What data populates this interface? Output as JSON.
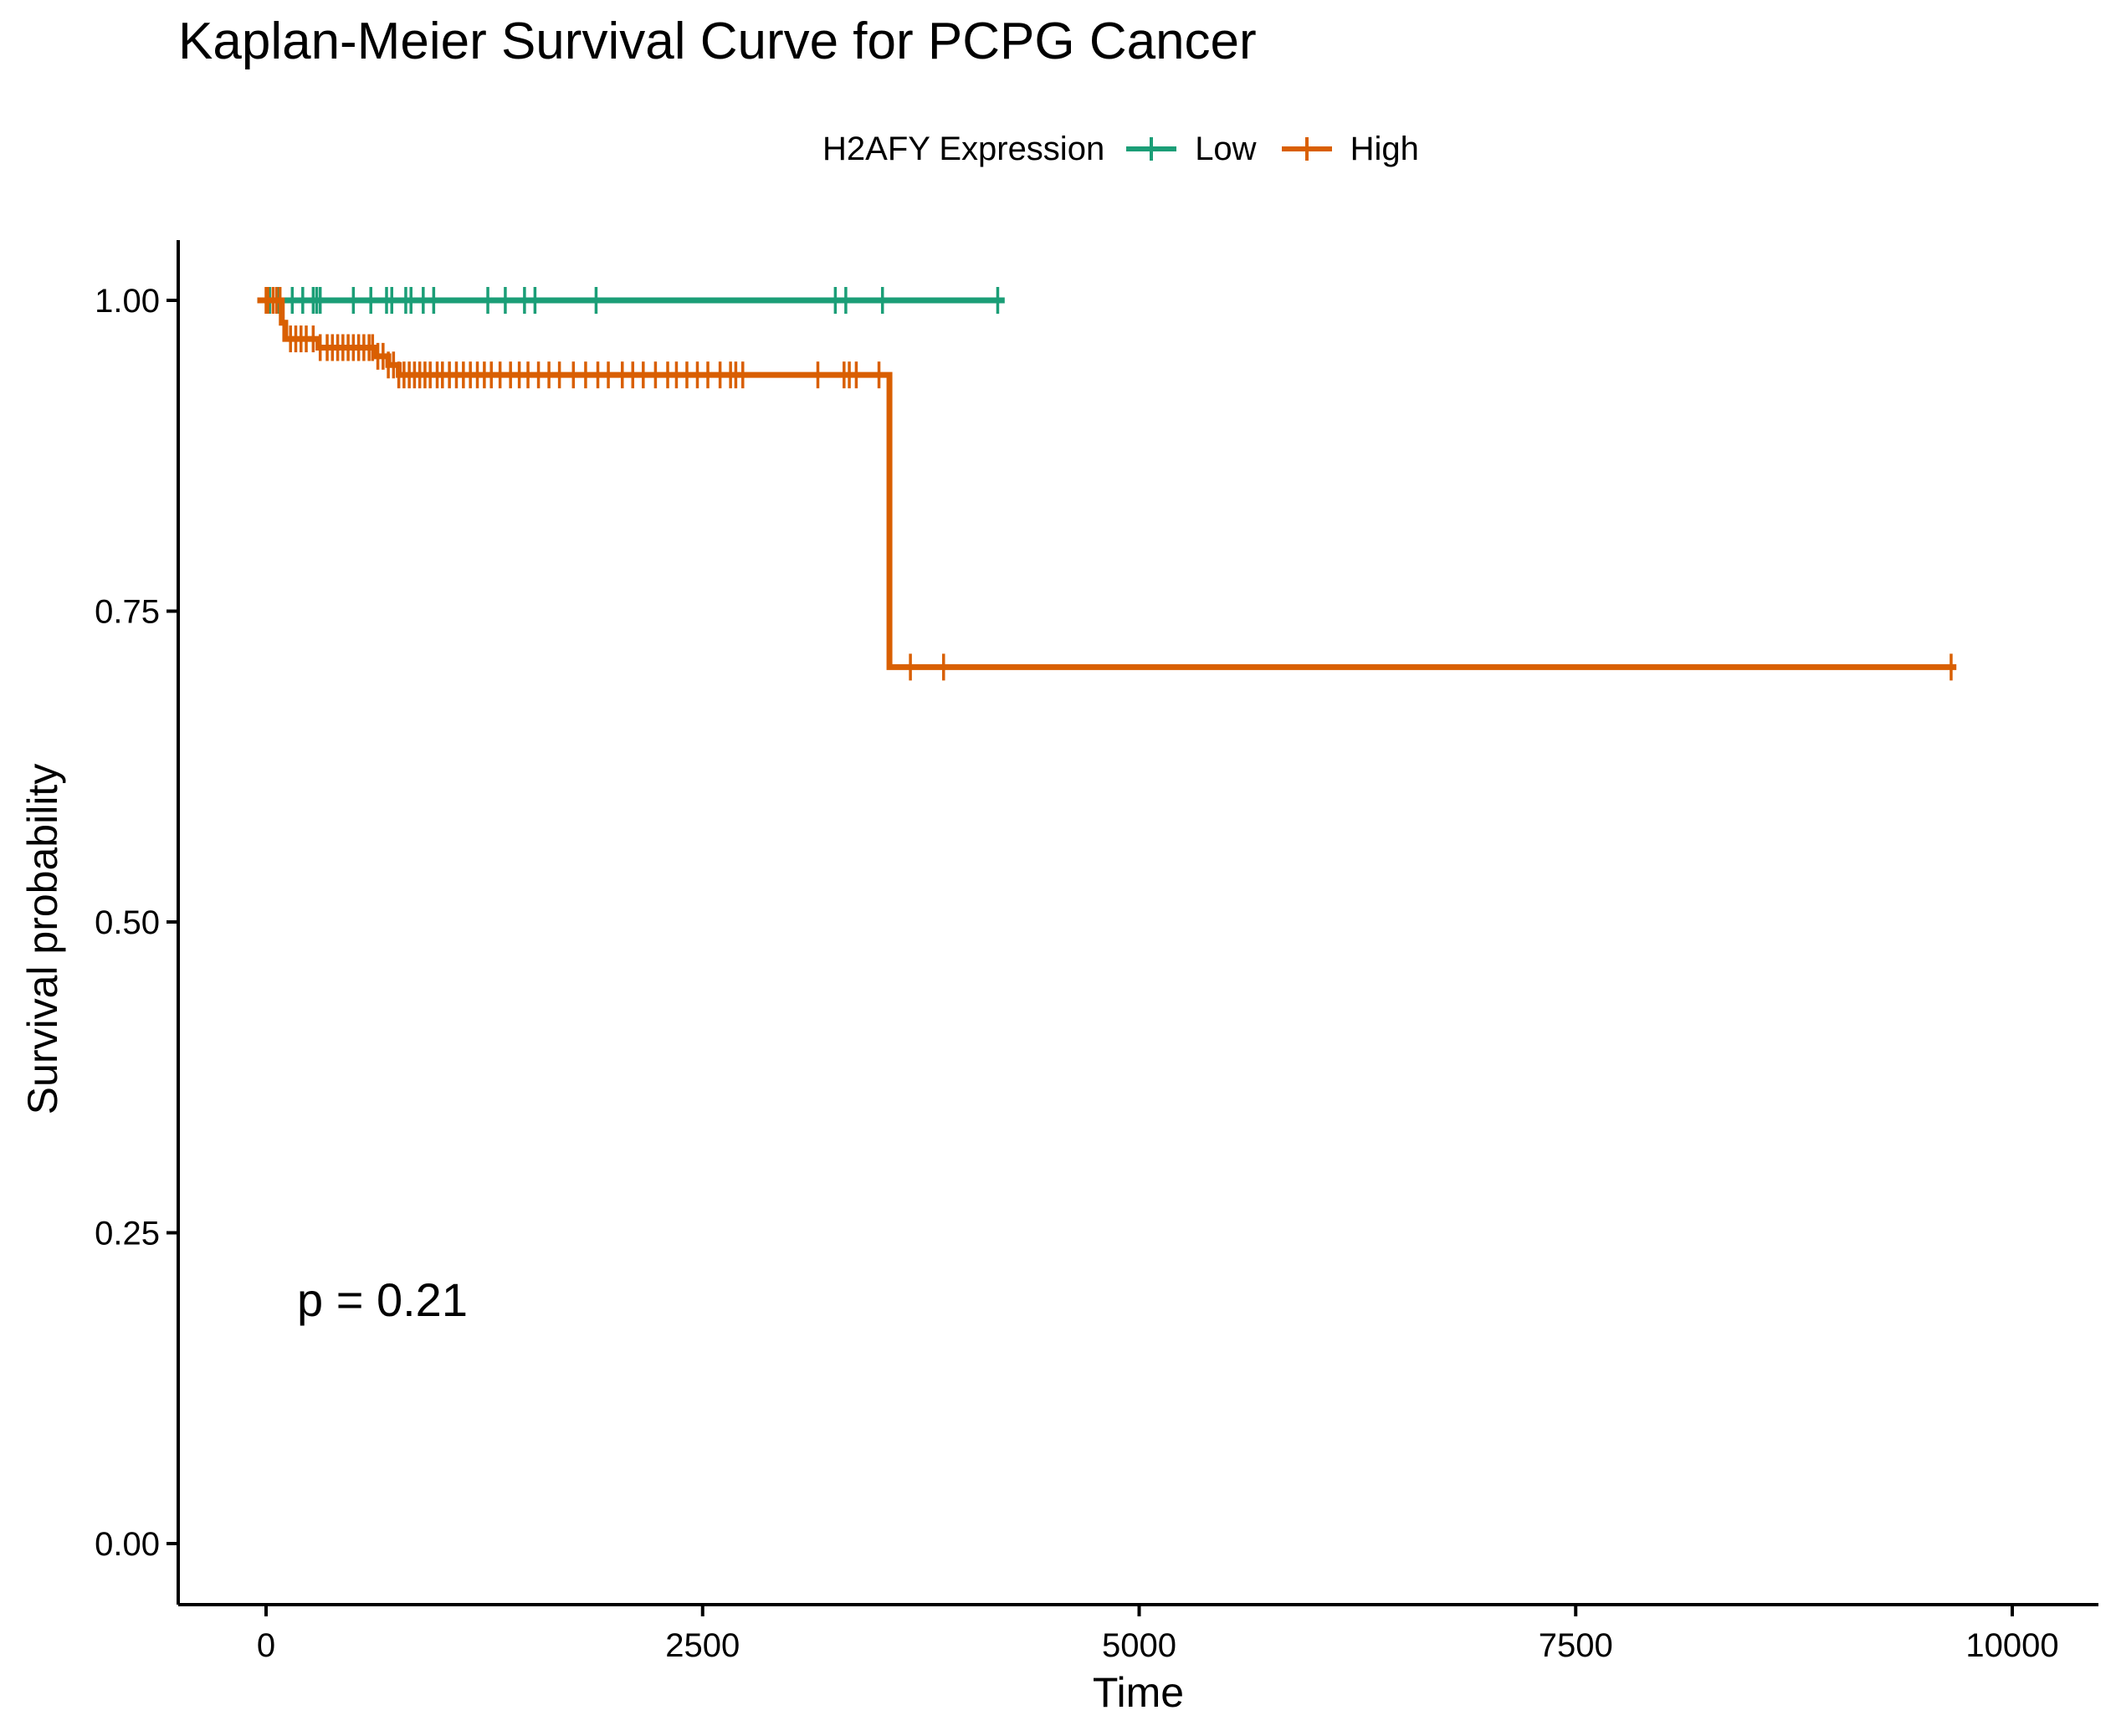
{
  "chart_data": {
    "type": "line",
    "subtype": "kaplan-meier step",
    "title": "Kaplan-Meier Survival Curve for PCPG Cancer",
    "xlabel": "Time",
    "ylabel": "Survival probability",
    "xlim": [
      -500,
      10500
    ],
    "ylim": [
      -0.05,
      1.05
    ],
    "x_ticks": [
      0,
      2500,
      5000,
      7500,
      10000
    ],
    "x_tick_labels": [
      "0",
      "2500",
      "5000",
      "7500",
      "10000"
    ],
    "y_ticks": [
      0,
      0.25,
      0.5,
      0.75,
      1.0
    ],
    "y_tick_labels": [
      "0.00",
      "0.25",
      "0.50",
      "0.75",
      "1.00"
    ],
    "grid": false,
    "legend": {
      "title": "H2AFY Expression",
      "position": "top"
    },
    "annotation": "p = 0.21",
    "series": [
      {
        "name": "Low",
        "color": "#1b9e77",
        "steps": [
          {
            "x": -50,
            "y": 1.0
          },
          {
            "x": 4230,
            "y": 1.0
          }
        ],
        "censor_times": [
          20,
          70,
          150,
          210,
          270,
          290,
          310,
          500,
          600,
          690,
          720,
          800,
          830,
          900,
          960,
          1270,
          1370,
          1480,
          1540,
          1890,
          3260,
          3320,
          3530,
          4190
        ],
        "censor_y": 1.0
      },
      {
        "name": "High",
        "color": "#d95f02",
        "steps": [
          {
            "x": -50,
            "y": 1.0
          },
          {
            "x": 90,
            "y": 0.982
          },
          {
            "x": 110,
            "y": 0.969
          },
          {
            "x": 300,
            "y": 0.962
          },
          {
            "x": 620,
            "y": 0.955
          },
          {
            "x": 700,
            "y": 0.948
          },
          {
            "x": 760,
            "y": 0.94
          },
          {
            "x": 3570,
            "y": 0.705
          },
          {
            "x": 9680,
            "y": 0.705
          }
        ],
        "censor_times": [
          0,
          10,
          40,
          60,
          80,
          140,
          170,
          200,
          230,
          270,
          310,
          350,
          380,
          410,
          440,
          470,
          500,
          530,
          560,
          590,
          610,
          640,
          670,
          700,
          730,
          760,
          790,
          820,
          850,
          880,
          910,
          940,
          980,
          1010,
          1050,
          1090,
          1130,
          1170,
          1210,
          1250,
          1290,
          1340,
          1400,
          1450,
          1500,
          1560,
          1620,
          1680,
          1760,
          1830,
          1900,
          1960,
          2040,
          2100,
          2160,
          2230,
          2300,
          2350,
          2410,
          2470,
          2530,
          2600,
          2660,
          2690,
          2730,
          3160,
          3310,
          3340,
          3380,
          3510,
          3690,
          3880,
          9650
        ],
        "censor_y_before": [
          1.0,
          1.0,
          1.0,
          1.0,
          1.0
        ]
      }
    ]
  }
}
